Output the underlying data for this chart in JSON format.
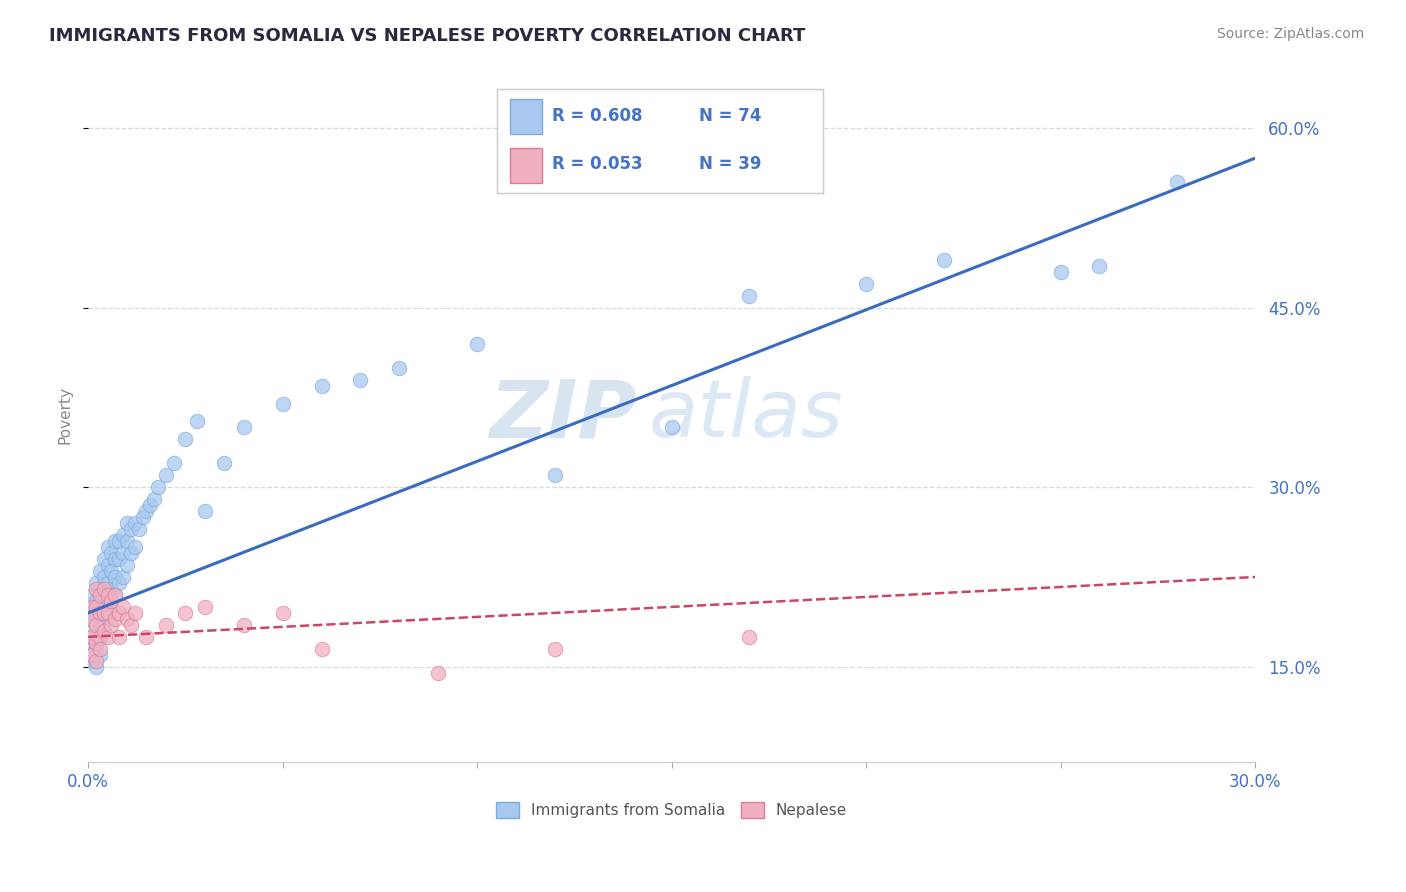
{
  "title": "IMMIGRANTS FROM SOMALIA VS NEPALESE POVERTY CORRELATION CHART",
  "source": "Source: ZipAtlas.com",
  "ylabel": "Poverty",
  "xlim": [
    0.0,
    0.3
  ],
  "ylim": [
    0.07,
    0.65
  ],
  "xticks": [
    0.0,
    0.3
  ],
  "yticks": [
    0.15,
    0.3,
    0.45,
    0.6
  ],
  "background_color": "#ffffff",
  "grid_color": "#c8d8ea",
  "axis_label_color": "#4472c4",
  "somalia_color": "#a8c8f0",
  "somalia_edge": "#7aabdc",
  "nepalese_color": "#f0b0c0",
  "nepalese_edge": "#dc7a9a",
  "somalia_line_color": "#3b6bbf",
  "nepalese_line_color": "#cc4466",
  "legend_R_somalia": "R = 0.608",
  "legend_N_somalia": "N = 74",
  "legend_R_nepalese": "R = 0.053",
  "legend_N_nepalese": "N = 39",
  "watermark_zip": "ZIP",
  "watermark_atlas": "atlas",
  "somalia_trend_x0": 0.0,
  "somalia_trend_y0": 0.195,
  "somalia_trend_x1": 0.3,
  "somalia_trend_y1": 0.575,
  "nepalese_trend_x0": 0.0,
  "nepalese_trend_y0": 0.175,
  "nepalese_trend_x1": 0.3,
  "nepalese_trend_y1": 0.225,
  "somalia_scatter_x": [
    0.001,
    0.001,
    0.001,
    0.001,
    0.001,
    0.002,
    0.002,
    0.002,
    0.002,
    0.002,
    0.002,
    0.003,
    0.003,
    0.003,
    0.003,
    0.003,
    0.003,
    0.004,
    0.004,
    0.004,
    0.004,
    0.004,
    0.005,
    0.005,
    0.005,
    0.005,
    0.005,
    0.006,
    0.006,
    0.006,
    0.006,
    0.007,
    0.007,
    0.007,
    0.007,
    0.008,
    0.008,
    0.008,
    0.009,
    0.009,
    0.009,
    0.01,
    0.01,
    0.01,
    0.011,
    0.011,
    0.012,
    0.012,
    0.013,
    0.014,
    0.015,
    0.016,
    0.017,
    0.018,
    0.02,
    0.022,
    0.025,
    0.028,
    0.03,
    0.035,
    0.04,
    0.05,
    0.06,
    0.07,
    0.08,
    0.1,
    0.12,
    0.15,
    0.17,
    0.2,
    0.22,
    0.25,
    0.26,
    0.28
  ],
  "somalia_scatter_y": [
    0.21,
    0.195,
    0.185,
    0.17,
    0.155,
    0.22,
    0.205,
    0.195,
    0.175,
    0.165,
    0.15,
    0.23,
    0.215,
    0.2,
    0.185,
    0.175,
    0.16,
    0.24,
    0.225,
    0.21,
    0.195,
    0.18,
    0.25,
    0.235,
    0.22,
    0.205,
    0.19,
    0.245,
    0.23,
    0.215,
    0.2,
    0.255,
    0.24,
    0.225,
    0.21,
    0.255,
    0.24,
    0.22,
    0.26,
    0.245,
    0.225,
    0.27,
    0.255,
    0.235,
    0.265,
    0.245,
    0.27,
    0.25,
    0.265,
    0.275,
    0.28,
    0.285,
    0.29,
    0.3,
    0.31,
    0.32,
    0.34,
    0.355,
    0.28,
    0.32,
    0.35,
    0.37,
    0.385,
    0.39,
    0.4,
    0.42,
    0.31,
    0.35,
    0.46,
    0.47,
    0.49,
    0.48,
    0.485,
    0.555
  ],
  "nepalese_scatter_x": [
    0.001,
    0.001,
    0.001,
    0.001,
    0.002,
    0.002,
    0.002,
    0.002,
    0.002,
    0.003,
    0.003,
    0.003,
    0.003,
    0.004,
    0.004,
    0.004,
    0.005,
    0.005,
    0.005,
    0.006,
    0.006,
    0.007,
    0.007,
    0.008,
    0.008,
    0.009,
    0.01,
    0.011,
    0.012,
    0.015,
    0.02,
    0.025,
    0.03,
    0.04,
    0.05,
    0.06,
    0.09,
    0.12,
    0.17
  ],
  "nepalese_scatter_y": [
    0.2,
    0.19,
    0.175,
    0.16,
    0.215,
    0.2,
    0.185,
    0.17,
    0.155,
    0.21,
    0.195,
    0.175,
    0.165,
    0.215,
    0.195,
    0.18,
    0.21,
    0.195,
    0.175,
    0.205,
    0.185,
    0.21,
    0.19,
    0.195,
    0.175,
    0.2,
    0.19,
    0.185,
    0.195,
    0.175,
    0.185,
    0.195,
    0.2,
    0.185,
    0.195,
    0.165,
    0.145,
    0.165,
    0.175
  ]
}
